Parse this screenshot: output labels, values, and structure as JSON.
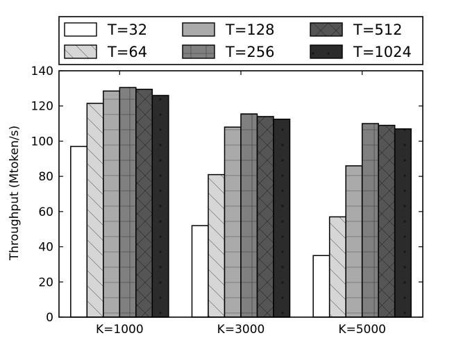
{
  "chart_data": {
    "type": "bar",
    "title": "",
    "xlabel": "",
    "ylabel": "Throughput (Mtoken/s)",
    "categories": [
      "K=1000",
      "K=3000",
      "K=5000"
    ],
    "ylim": [
      0,
      140
    ],
    "yticks": [
      0,
      20,
      40,
      60,
      80,
      100,
      120,
      140
    ],
    "grid": false,
    "legend_position": "top",
    "series": [
      {
        "name": "T=32",
        "values": [
          97,
          52,
          35
        ],
        "color": "#ffffff",
        "hatch": "none"
      },
      {
        "name": "T=64",
        "values": [
          121.5,
          81,
          57
        ],
        "color": "#d6d6d6",
        "hatch": "backslash"
      },
      {
        "name": "T=128",
        "values": [
          128.5,
          108,
          86
        ],
        "color": "#aaaaaa",
        "hatch": "horizontal"
      },
      {
        "name": "T=256",
        "values": [
          130.5,
          115.5,
          110
        ],
        "color": "#808080",
        "hatch": "plus"
      },
      {
        "name": "T=512",
        "values": [
          129.5,
          114,
          109
        ],
        "color": "#555555",
        "hatch": "cross"
      },
      {
        "name": "T=1024",
        "values": [
          126,
          112.5,
          107
        ],
        "color": "#2b2b2b",
        "hatch": "dots"
      }
    ]
  }
}
